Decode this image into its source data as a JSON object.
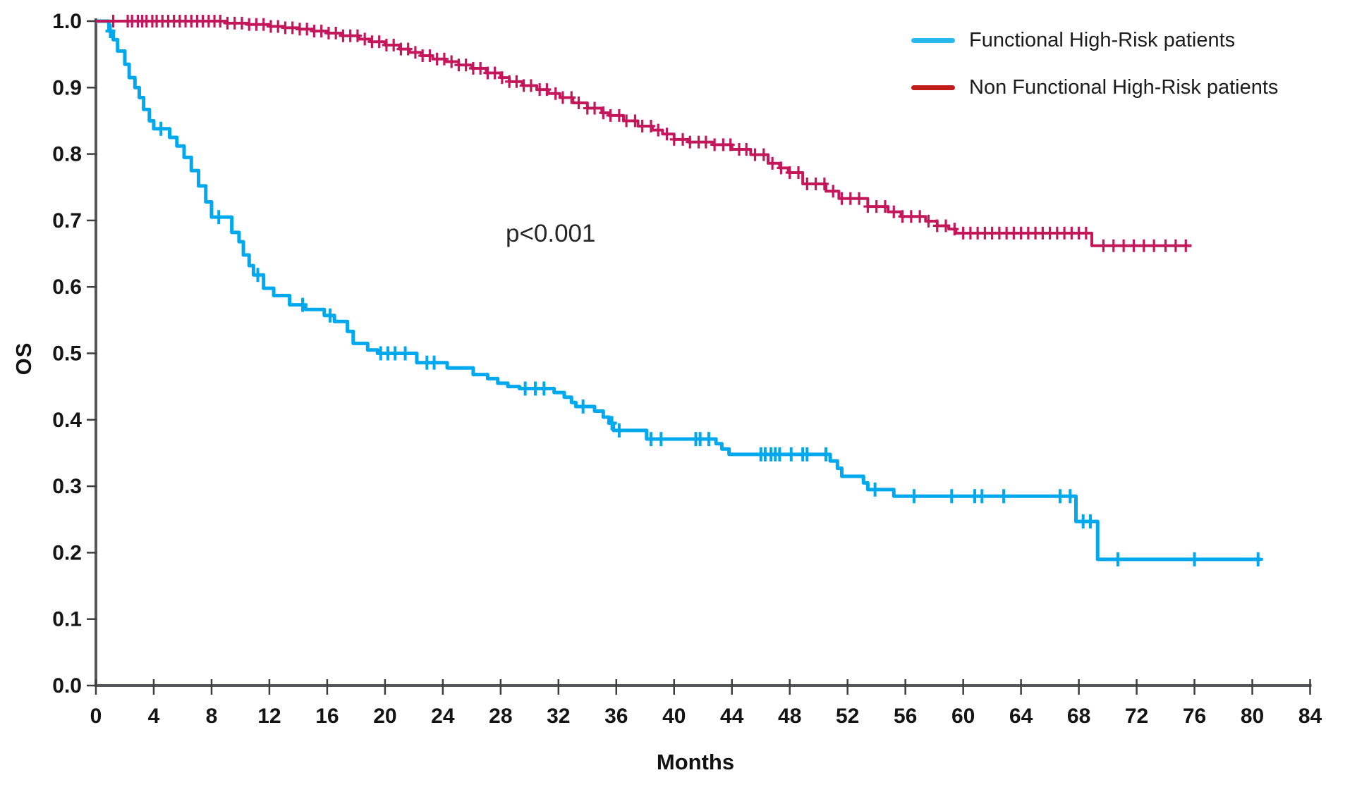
{
  "figure": {
    "background": "#ffffff"
  },
  "chart_data": {
    "type": "line",
    "subtype": "kaplan-meier-step-plot",
    "title": "",
    "xlabel": "Months",
    "ylabel": "OS",
    "annotation": "p<0.001",
    "xlim": [
      0,
      84
    ],
    "ylim": [
      0.0,
      1.0
    ],
    "x_ticks": [
      0,
      4,
      8,
      12,
      16,
      20,
      24,
      28,
      32,
      36,
      40,
      44,
      48,
      52,
      56,
      60,
      64,
      68,
      72,
      76,
      80,
      84
    ],
    "y_ticks": [
      "0.0",
      "0.1",
      "0.2",
      "0.3",
      "0.4",
      "0.5",
      "0.6",
      "0.7",
      "0.8",
      "0.9",
      "1.0"
    ],
    "grid": false,
    "legend_position": "top-right",
    "axis_color": "#56575B",
    "tick_color": "#3E3E40",
    "text_color": "#141414",
    "series": [
      {
        "key": "functional-high-risk",
        "name": "Functional High-Risk patients",
        "color": "#00A9EE",
        "legend_color": "#2BB8EF",
        "line_width": 5,
        "end_month": 80.6,
        "steps": [
          [
            0,
            1.0
          ],
          [
            0.9,
            0.985
          ],
          [
            1.2,
            0.972
          ],
          [
            1.5,
            0.955
          ],
          [
            2.0,
            0.935
          ],
          [
            2.3,
            0.915
          ],
          [
            2.7,
            0.9
          ],
          [
            3.0,
            0.885
          ],
          [
            3.3,
            0.867
          ],
          [
            3.7,
            0.85
          ],
          [
            4.0,
            0.838
          ],
          [
            5.1,
            0.825
          ],
          [
            5.6,
            0.812
          ],
          [
            6.1,
            0.795
          ],
          [
            6.6,
            0.775
          ],
          [
            7.1,
            0.752
          ],
          [
            7.6,
            0.728
          ],
          [
            8.0,
            0.705
          ],
          [
            9.4,
            0.682
          ],
          [
            9.9,
            0.668
          ],
          [
            10.2,
            0.648
          ],
          [
            10.6,
            0.632
          ],
          [
            10.9,
            0.618
          ],
          [
            11.6,
            0.598
          ],
          [
            12.3,
            0.587
          ],
          [
            13.4,
            0.573
          ],
          [
            14.5,
            0.566
          ],
          [
            15.8,
            0.557
          ],
          [
            16.5,
            0.548
          ],
          [
            17.4,
            0.533
          ],
          [
            17.8,
            0.515
          ],
          [
            18.8,
            0.505
          ],
          [
            19.5,
            0.5
          ],
          [
            22.2,
            0.486
          ],
          [
            24.3,
            0.478
          ],
          [
            26.1,
            0.468
          ],
          [
            27.1,
            0.462
          ],
          [
            27.8,
            0.455
          ],
          [
            28.5,
            0.45
          ],
          [
            29.3,
            0.447
          ],
          [
            31.7,
            0.441
          ],
          [
            32.4,
            0.434
          ],
          [
            32.9,
            0.426
          ],
          [
            33.2,
            0.42
          ],
          [
            34.5,
            0.413
          ],
          [
            35.1,
            0.404
          ],
          [
            35.5,
            0.395
          ],
          [
            35.8,
            0.384
          ],
          [
            38.1,
            0.371
          ],
          [
            42.9,
            0.364
          ],
          [
            43.3,
            0.356
          ],
          [
            43.8,
            0.348
          ],
          [
            50.8,
            0.338
          ],
          [
            51.3,
            0.327
          ],
          [
            51.6,
            0.315
          ],
          [
            53.1,
            0.305
          ],
          [
            53.4,
            0.295
          ],
          [
            55.2,
            0.285
          ],
          [
            67.8,
            0.247
          ],
          [
            69.3,
            0.19
          ]
        ],
        "censor_months": [
          1.0,
          4.5,
          8.5,
          11.2,
          14.3,
          16.2,
          19.7,
          20.2,
          20.7,
          21.4,
          22.9,
          23.4,
          29.7,
          30.4,
          31.0,
          33.7,
          35.7,
          36.2,
          38.4,
          39.1,
          41.5,
          41.8,
          42.4,
          46.0,
          46.3,
          46.7,
          47.0,
          47.3,
          48.1,
          48.9,
          49.2,
          50.5,
          53.9,
          56.6,
          59.2,
          60.8,
          61.3,
          62.8,
          66.7,
          67.4,
          68.3,
          68.8,
          70.7,
          76.0,
          80.4
        ]
      },
      {
        "key": "non-functional-high-risk",
        "name": "Non Functional High-Risk patients",
        "color": "#C4165A",
        "legend_color": "#C11B1B",
        "line_width": 4,
        "end_month": 75.8,
        "steps": [
          [
            0,
            1.0
          ],
          [
            9.0,
            0.997
          ],
          [
            10.5,
            0.995
          ],
          [
            12.0,
            0.992
          ],
          [
            13.0,
            0.99
          ],
          [
            14.0,
            0.988
          ],
          [
            15.0,
            0.985
          ],
          [
            16.0,
            0.982
          ],
          [
            17.0,
            0.978
          ],
          [
            18.2,
            0.973
          ],
          [
            19.0,
            0.969
          ],
          [
            20.0,
            0.964
          ],
          [
            21.0,
            0.958
          ],
          [
            21.7,
            0.953
          ],
          [
            22.5,
            0.948
          ],
          [
            23.3,
            0.943
          ],
          [
            24.2,
            0.939
          ],
          [
            25.1,
            0.934
          ],
          [
            26.0,
            0.929
          ],
          [
            27.0,
            0.922
          ],
          [
            28.0,
            0.915
          ],
          [
            28.6,
            0.909
          ],
          [
            29.5,
            0.903
          ],
          [
            30.5,
            0.897
          ],
          [
            31.3,
            0.891
          ],
          [
            32.1,
            0.885
          ],
          [
            33.0,
            0.877
          ],
          [
            34.0,
            0.869
          ],
          [
            35.0,
            0.862
          ],
          [
            35.5,
            0.858
          ],
          [
            36.5,
            0.85
          ],
          [
            37.5,
            0.842
          ],
          [
            38.5,
            0.836
          ],
          [
            39.2,
            0.83
          ],
          [
            40.0,
            0.822
          ],
          [
            41.0,
            0.818
          ],
          [
            42.7,
            0.814
          ],
          [
            44.0,
            0.807
          ],
          [
            45.3,
            0.799
          ],
          [
            46.5,
            0.786
          ],
          [
            47.3,
            0.779
          ],
          [
            47.9,
            0.772
          ],
          [
            48.9,
            0.755
          ],
          [
            50.5,
            0.744
          ],
          [
            51.4,
            0.733
          ],
          [
            53.4,
            0.721
          ],
          [
            54.8,
            0.713
          ],
          [
            55.7,
            0.706
          ],
          [
            57.4,
            0.699
          ],
          [
            58.2,
            0.692
          ],
          [
            59.0,
            0.687
          ],
          [
            59.5,
            0.681
          ],
          [
            68.9,
            0.662
          ]
        ],
        "censor_months": [
          1.2,
          2.2,
          2.5,
          2.9,
          3.2,
          3.5,
          3.9,
          4.2,
          4.6,
          5.0,
          5.4,
          5.8,
          6.2,
          6.6,
          7.0,
          7.4,
          7.8,
          8.2,
          8.6,
          9.1,
          9.6,
          10.1,
          10.6,
          11.1,
          11.6,
          12.1,
          12.6,
          13.1,
          13.6,
          14.1,
          14.6,
          15.1,
          15.6,
          16.1,
          16.6,
          17.1,
          17.6,
          18.1,
          18.6,
          19.1,
          19.6,
          20.1,
          20.6,
          21.1,
          21.6,
          22.1,
          22.6,
          23.1,
          23.6,
          24.1,
          24.6,
          25.1,
          25.6,
          26.1,
          26.6,
          27.1,
          27.6,
          28.1,
          28.6,
          29.1,
          29.6,
          30.1,
          30.7,
          31.2,
          31.8,
          32.3,
          32.9,
          33.4,
          34.0,
          34.5,
          35.1,
          35.6,
          36.2,
          36.7,
          37.3,
          37.8,
          38.4,
          38.9,
          39.5,
          40.0,
          40.6,
          41.1,
          41.7,
          42.2,
          42.8,
          43.4,
          43.9,
          44.5,
          45.0,
          45.6,
          46.2,
          46.8,
          47.4,
          48.0,
          48.6,
          49.2,
          49.8,
          50.4,
          51.0,
          51.6,
          52.2,
          52.8,
          53.4,
          54.0,
          54.6,
          55.2,
          55.8,
          56.4,
          57.0,
          57.6,
          58.2,
          58.8,
          59.4,
          60.0,
          60.5,
          61.0,
          61.5,
          62.0,
          62.5,
          63.0,
          63.5,
          64.0,
          64.5,
          65.0,
          65.5,
          66.0,
          66.5,
          67.0,
          67.5,
          68.0,
          68.5,
          69.7,
          70.4,
          71.1,
          71.8,
          72.5,
          73.2,
          74.0,
          74.7,
          75.4
        ]
      }
    ]
  }
}
